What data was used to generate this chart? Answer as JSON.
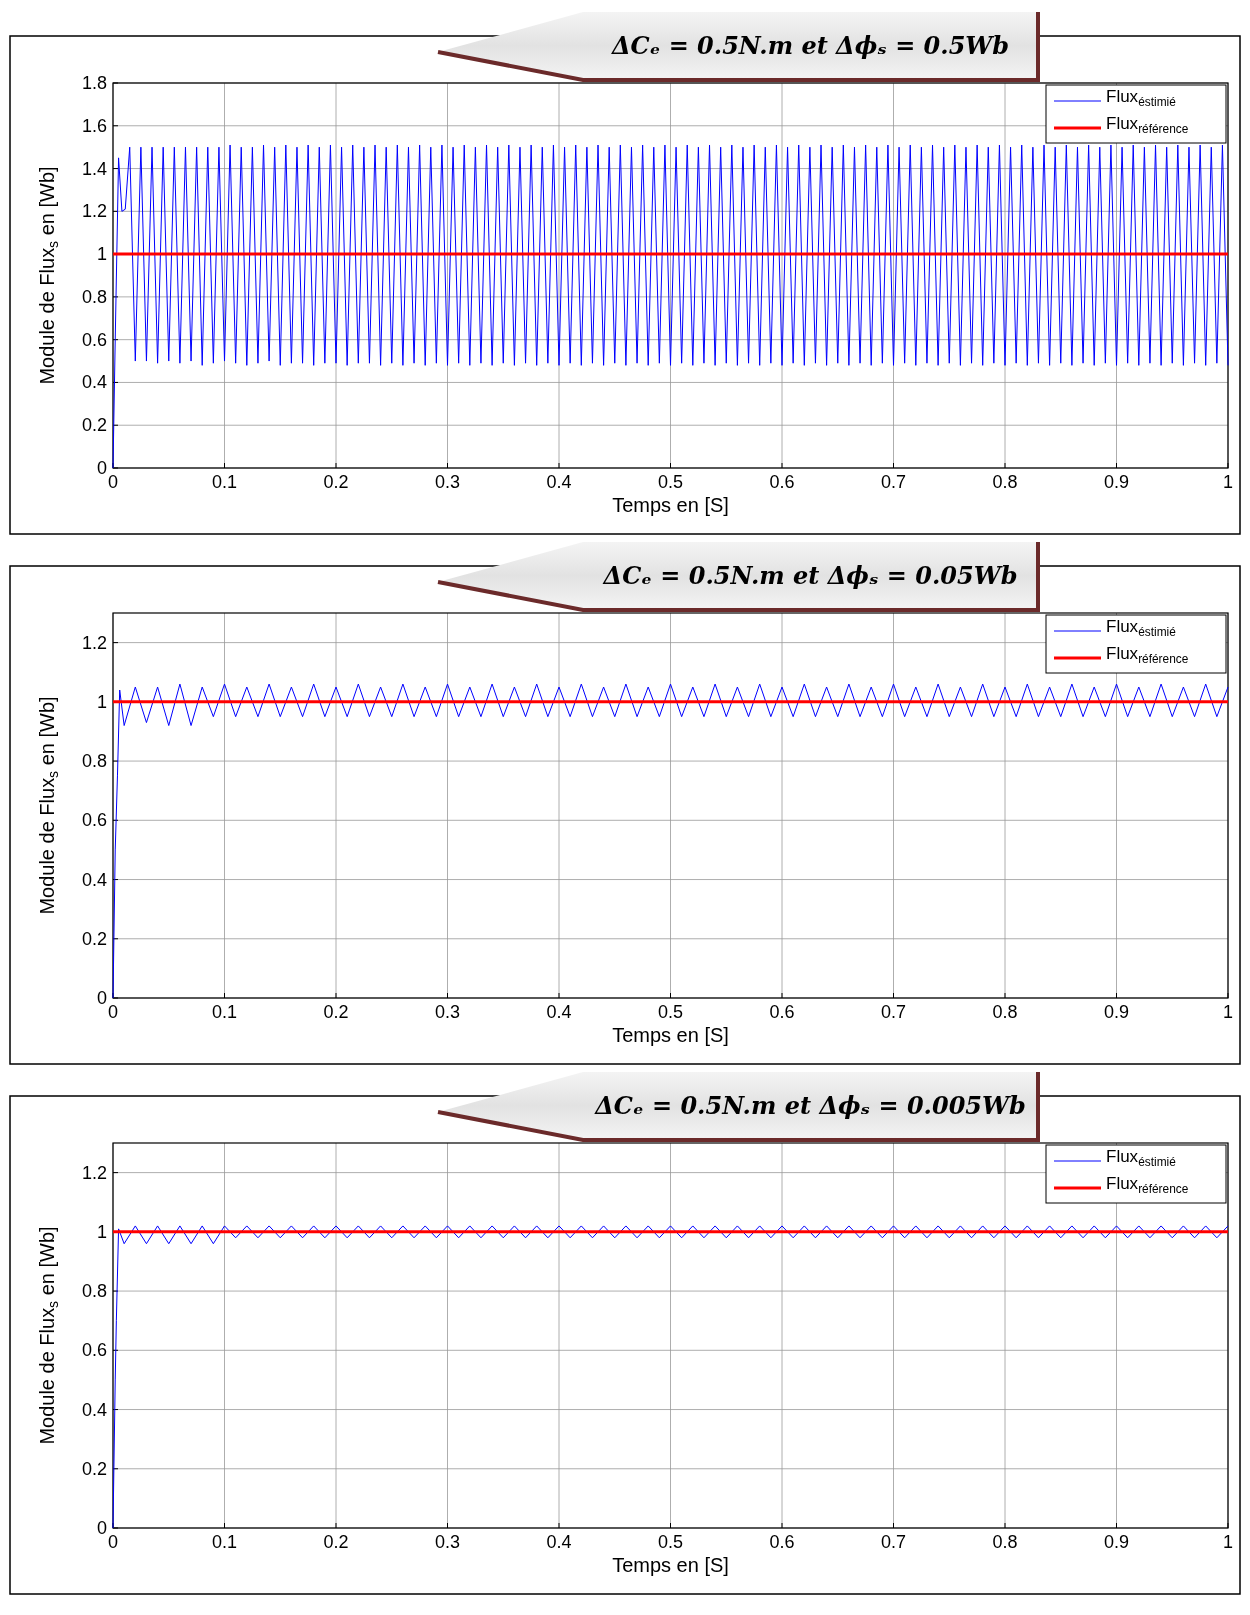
{
  "chart_data": [
    {
      "type": "line",
      "title": "ΔCₑ = 0.5N.m et Δϕₛ = 0.5Wb",
      "xlabel": "Temps en [S]",
      "ylabel": "Module de Flux$_{s}$ en [Wb]",
      "xlim": [
        0,
        1
      ],
      "ylim": [
        0,
        1.8
      ],
      "xticks": [
        0,
        0.1,
        0.2,
        0.3,
        0.4,
        0.5,
        0.6,
        0.7,
        0.8,
        0.9,
        1
      ],
      "yticks": [
        0,
        0.2,
        0.4,
        0.6,
        0.8,
        1,
        1.2,
        1.4,
        1.6,
        1.8
      ],
      "grid": true,
      "legend": "top right",
      "series": [
        {
          "name": "Flux$_{éstimié}$",
          "color": "#0000ff",
          "x": [
            0,
            0.002,
            0.005,
            0.008,
            0.011,
            0.015,
            0.02,
            0.025,
            0.03,
            0.035,
            0.04,
            0.045,
            0.05,
            0.055,
            0.06,
            0.065,
            0.07,
            0.075,
            0.08,
            0.085,
            0.09,
            0.095,
            0.1,
            0.105,
            0.11,
            0.115,
            0.12,
            0.125,
            0.13,
            0.135,
            0.14,
            0.145,
            0.15,
            0.155,
            0.16,
            0.165,
            0.17,
            0.175,
            0.18,
            0.185,
            0.19,
            0.195,
            0.2,
            0.205,
            0.21,
            0.215,
            0.22,
            0.225,
            0.23,
            0.235,
            0.24,
            0.245,
            0.25,
            0.255,
            0.26,
            0.265,
            0.27,
            0.275,
            0.28,
            0.285,
            0.29,
            0.295,
            0.3,
            0.305,
            0.31,
            0.315,
            0.32,
            0.325,
            0.33,
            0.335,
            0.34,
            0.345,
            0.35,
            0.355,
            0.36,
            0.365,
            0.37,
            0.375,
            0.38,
            0.385,
            0.39,
            0.395,
            0.4,
            0.405,
            0.41,
            0.415,
            0.42,
            0.425,
            0.43,
            0.435,
            0.44,
            0.445,
            0.45,
            0.455,
            0.46,
            0.465,
            0.47,
            0.475,
            0.48,
            0.485,
            0.49,
            0.495,
            0.5,
            0.505,
            0.51,
            0.515,
            0.52,
            0.525,
            0.53,
            0.535,
            0.54,
            0.545,
            0.55,
            0.555,
            0.56,
            0.565,
            0.57,
            0.575,
            0.58,
            0.585,
            0.59,
            0.595,
            0.6,
            0.605,
            0.61,
            0.615,
            0.62,
            0.625,
            0.63,
            0.635,
            0.64,
            0.645,
            0.65,
            0.655,
            0.66,
            0.665,
            0.67,
            0.675,
            0.68,
            0.685,
            0.69,
            0.695,
            0.7,
            0.705,
            0.71,
            0.715,
            0.72,
            0.725,
            0.73,
            0.735,
            0.74,
            0.745,
            0.75,
            0.755,
            0.76,
            0.765,
            0.77,
            0.775,
            0.78,
            0.785,
            0.79,
            0.795,
            0.8,
            0.805,
            0.81,
            0.815,
            0.82,
            0.825,
            0.83,
            0.835,
            0.84,
            0.845,
            0.85,
            0.855,
            0.86,
            0.865,
            0.87,
            0.875,
            0.88,
            0.885,
            0.89,
            0.895,
            0.9,
            0.905,
            0.91,
            0.915,
            0.92,
            0.925,
            0.93,
            0.935,
            0.94,
            0.945,
            0.95,
            0.955,
            0.96,
            0.965,
            0.97,
            0.975,
            0.98,
            0.985,
            0.99,
            0.995,
            1
          ],
          "values": [
            0,
            0.6,
            1.45,
            1.2,
            1.21,
            1.5,
            0.5,
            1.5,
            0.5,
            1.5,
            0.49,
            1.5,
            0.5,
            1.5,
            0.49,
            1.5,
            0.5,
            1.5,
            0.48,
            1.5,
            0.49,
            1.5,
            0.5,
            1.51,
            0.49,
            1.5,
            0.48,
            1.5,
            0.49,
            1.51,
            0.5,
            1.5,
            0.48,
            1.51,
            0.49,
            1.5,
            0.49,
            1.51,
            0.48,
            1.5,
            0.49,
            1.51,
            0.49,
            1.5,
            0.48,
            1.51,
            0.49,
            1.5,
            0.49,
            1.51,
            0.48,
            1.5,
            0.49,
            1.51,
            0.48,
            1.5,
            0.49,
            1.51,
            0.48,
            1.5,
            0.49,
            1.51,
            0.48,
            1.5,
            0.49,
            1.51,
            0.48,
            1.5,
            0.49,
            1.51,
            0.48,
            1.5,
            0.49,
            1.51,
            0.48,
            1.5,
            0.49,
            1.51,
            0.48,
            1.5,
            0.49,
            1.51,
            0.48,
            1.5,
            0.49,
            1.51,
            0.48,
            1.5,
            0.49,
            1.51,
            0.48,
            1.5,
            0.49,
            1.51,
            0.48,
            1.5,
            0.49,
            1.51,
            0.48,
            1.5,
            0.49,
            1.51,
            0.48,
            1.5,
            0.49,
            1.51,
            0.48,
            1.5,
            0.49,
            1.51,
            0.48,
            1.5,
            0.49,
            1.51,
            0.48,
            1.5,
            0.49,
            1.51,
            0.48,
            1.5,
            0.49,
            1.51,
            0.48,
            1.5,
            0.49,
            1.51,
            0.48,
            1.5,
            0.49,
            1.51,
            0.48,
            1.5,
            0.49,
            1.51,
            0.48,
            1.5,
            0.49,
            1.51,
            0.48,
            1.5,
            0.49,
            1.51,
            0.48,
            1.5,
            0.49,
            1.51,
            0.48,
            1.5,
            0.49,
            1.51,
            0.48,
            1.5,
            0.49,
            1.51,
            0.48,
            1.5,
            0.49,
            1.51,
            0.48,
            1.5,
            0.49,
            1.51,
            0.48,
            1.5,
            0.49,
            1.51,
            0.48,
            1.5,
            0.49,
            1.51,
            0.48,
            1.5,
            0.49,
            1.51,
            0.48,
            1.5,
            0.49,
            1.51,
            0.48,
            1.5,
            0.49,
            1.51,
            0.48,
            1.5,
            0.49,
            1.51,
            0.48,
            1.5,
            0.49,
            1.51,
            0.48,
            1.5,
            0.49,
            1.51,
            0.48,
            1.5,
            0.49,
            1.51,
            0.48,
            1.5,
            0.49,
            1.51,
            0.48
          ]
        },
        {
          "name": "Flux$_{référence}$",
          "color": "#ff0000",
          "x": [
            0,
            1
          ],
          "values": [
            1,
            1
          ]
        }
      ]
    },
    {
      "type": "line",
      "title": "ΔCₑ = 0.5N.m et Δϕₛ = 0.05Wb",
      "xlabel": "Temps en [S]",
      "ylabel": "Module de Flux$_{s}$ en [Wb]",
      "xlim": [
        0,
        1
      ],
      "ylim": [
        0,
        1.3
      ],
      "xticks": [
        0,
        0.1,
        0.2,
        0.3,
        0.4,
        0.5,
        0.6,
        0.7,
        0.8,
        0.9,
        1
      ],
      "yticks": [
        0,
        0.2,
        0.4,
        0.6,
        0.8,
        1,
        1.2
      ],
      "grid": true,
      "legend": "top right",
      "series": [
        {
          "name": "Flux$_{éstimié}$",
          "color": "#0000ff",
          "x": [
            0,
            0.002,
            0.004,
            0.006,
            0.01,
            0.02,
            0.03,
            0.04,
            0.05,
            0.06,
            0.07,
            0.08,
            0.09,
            0.1,
            0.11,
            0.12,
            0.13,
            0.14,
            0.15,
            0.16,
            0.17,
            0.18,
            0.19,
            0.2,
            0.21,
            0.22,
            0.23,
            0.24,
            0.25,
            0.26,
            0.27,
            0.28,
            0.29,
            0.3,
            0.31,
            0.32,
            0.33,
            0.34,
            0.35,
            0.36,
            0.37,
            0.38,
            0.39,
            0.4,
            0.41,
            0.42,
            0.43,
            0.44,
            0.45,
            0.46,
            0.47,
            0.48,
            0.49,
            0.5,
            0.51,
            0.52,
            0.53,
            0.54,
            0.55,
            0.56,
            0.57,
            0.58,
            0.59,
            0.6,
            0.61,
            0.62,
            0.63,
            0.64,
            0.65,
            0.66,
            0.67,
            0.68,
            0.69,
            0.7,
            0.71,
            0.72,
            0.73,
            0.74,
            0.75,
            0.76,
            0.77,
            0.78,
            0.79,
            0.8,
            0.81,
            0.82,
            0.83,
            0.84,
            0.85,
            0.86,
            0.87,
            0.88,
            0.89,
            0.9,
            0.91,
            0.92,
            0.93,
            0.94,
            0.95,
            0.96,
            0.97,
            0.98,
            0.99,
            1
          ],
          "values": [
            0,
            0.5,
            0.75,
            1.04,
            0.92,
            1.05,
            0.93,
            1.05,
            0.92,
            1.06,
            0.92,
            1.05,
            0.95,
            1.06,
            0.95,
            1.05,
            0.95,
            1.06,
            0.95,
            1.05,
            0.95,
            1.06,
            0.95,
            1.05,
            0.95,
            1.06,
            0.95,
            1.05,
            0.95,
            1.06,
            0.95,
            1.05,
            0.95,
            1.06,
            0.95,
            1.05,
            0.95,
            1.06,
            0.95,
            1.05,
            0.95,
            1.06,
            0.95,
            1.05,
            0.95,
            1.06,
            0.95,
            1.05,
            0.95,
            1.06,
            0.95,
            1.05,
            0.95,
            1.06,
            0.95,
            1.05,
            0.95,
            1.06,
            0.95,
            1.05,
            0.95,
            1.06,
            0.95,
            1.05,
            0.95,
            1.06,
            0.95,
            1.05,
            0.95,
            1.06,
            0.95,
            1.05,
            0.95,
            1.06,
            0.95,
            1.05,
            0.95,
            1.06,
            0.95,
            1.05,
            0.95,
            1.06,
            0.95,
            1.05,
            0.95,
            1.06,
            0.95,
            1.05,
            0.95,
            1.06,
            0.95,
            1.05,
            0.95,
            1.06,
            0.95,
            1.05,
            0.95,
            1.06,
            0.95,
            1.05,
            0.95,
            1.06,
            0.95,
            1.05
          ]
        },
        {
          "name": "Flux$_{référence}$",
          "color": "#ff0000",
          "x": [
            0,
            1
          ],
          "values": [
            1,
            1
          ]
        }
      ]
    },
    {
      "type": "line",
      "title": "ΔCₑ = 0.5N.m et Δϕₛ = 0.005Wb",
      "xlabel": "Temps en [S]",
      "ylabel": "Module de Flux$_{s}$ en [Wb]",
      "xlim": [
        0,
        1
      ],
      "ylim": [
        0,
        1.3
      ],
      "xticks": [
        0,
        0.1,
        0.2,
        0.3,
        0.4,
        0.5,
        0.6,
        0.7,
        0.8,
        0.9,
        1
      ],
      "yticks": [
        0,
        0.2,
        0.4,
        0.6,
        0.8,
        1,
        1.2
      ],
      "grid": true,
      "legend": "top right",
      "series": [
        {
          "name": "Flux$_{éstimié}$",
          "color": "#0000ff",
          "x": [
            0,
            0.002,
            0.003,
            0.005,
            0.01,
            0.02,
            0.03,
            0.04,
            0.05,
            0.06,
            0.07,
            0.08,
            0.09,
            0.1,
            0.11,
            0.12,
            0.13,
            0.14,
            0.15,
            0.16,
            0.17,
            0.18,
            0.19,
            0.2,
            0.21,
            0.22,
            0.23,
            0.24,
            0.25,
            0.26,
            0.27,
            0.28,
            0.29,
            0.3,
            0.31,
            0.32,
            0.33,
            0.34,
            0.35,
            0.36,
            0.37,
            0.38,
            0.39,
            0.4,
            0.41,
            0.42,
            0.43,
            0.44,
            0.45,
            0.46,
            0.47,
            0.48,
            0.49,
            0.5,
            0.51,
            0.52,
            0.53,
            0.54,
            0.55,
            0.56,
            0.57,
            0.58,
            0.59,
            0.6,
            0.61,
            0.62,
            0.63,
            0.64,
            0.65,
            0.66,
            0.67,
            0.68,
            0.69,
            0.7,
            0.71,
            0.72,
            0.73,
            0.74,
            0.75,
            0.76,
            0.77,
            0.78,
            0.79,
            0.8,
            0.81,
            0.82,
            0.83,
            0.84,
            0.85,
            0.86,
            0.87,
            0.88,
            0.89,
            0.9,
            0.91,
            0.92,
            0.93,
            0.94,
            0.95,
            0.96,
            0.97,
            0.98,
            0.99,
            1
          ],
          "values": [
            0,
            0.5,
            0.7,
            1.01,
            0.96,
            1.02,
            0.96,
            1.02,
            0.96,
            1.02,
            0.96,
            1.02,
            0.96,
            1.02,
            0.98,
            1.02,
            0.98,
            1.02,
            0.98,
            1.02,
            0.98,
            1.02,
            0.98,
            1.02,
            0.98,
            1.02,
            0.98,
            1.02,
            0.98,
            1.02,
            0.98,
            1.02,
            0.98,
            1.02,
            0.98,
            1.02,
            0.98,
            1.02,
            0.98,
            1.02,
            0.98,
            1.02,
            0.98,
            1.02,
            0.98,
            1.02,
            0.98,
            1.02,
            0.98,
            1.02,
            0.98,
            1.02,
            0.98,
            1.02,
            0.98,
            1.02,
            0.98,
            1.02,
            0.98,
            1.02,
            0.98,
            1.02,
            0.98,
            1.02,
            0.98,
            1.02,
            0.98,
            1.02,
            0.98,
            1.02,
            0.98,
            1.02,
            0.98,
            1.02,
            0.98,
            1.02,
            0.98,
            1.02,
            0.98,
            1.02,
            0.98,
            1.02,
            0.98,
            1.02,
            0.98,
            1.02,
            0.98,
            1.02,
            0.98,
            1.02,
            0.98,
            1.02,
            0.98,
            1.02,
            0.98,
            1.02,
            0.98,
            1.02,
            0.98,
            1.02,
            0.98,
            1.02,
            0.98,
            1.02
          ]
        },
        {
          "name": "Flux$_{référence}$",
          "color": "#ff0000",
          "x": [
            0,
            1
          ],
          "values": [
            1,
            1
          ]
        }
      ]
    }
  ]
}
